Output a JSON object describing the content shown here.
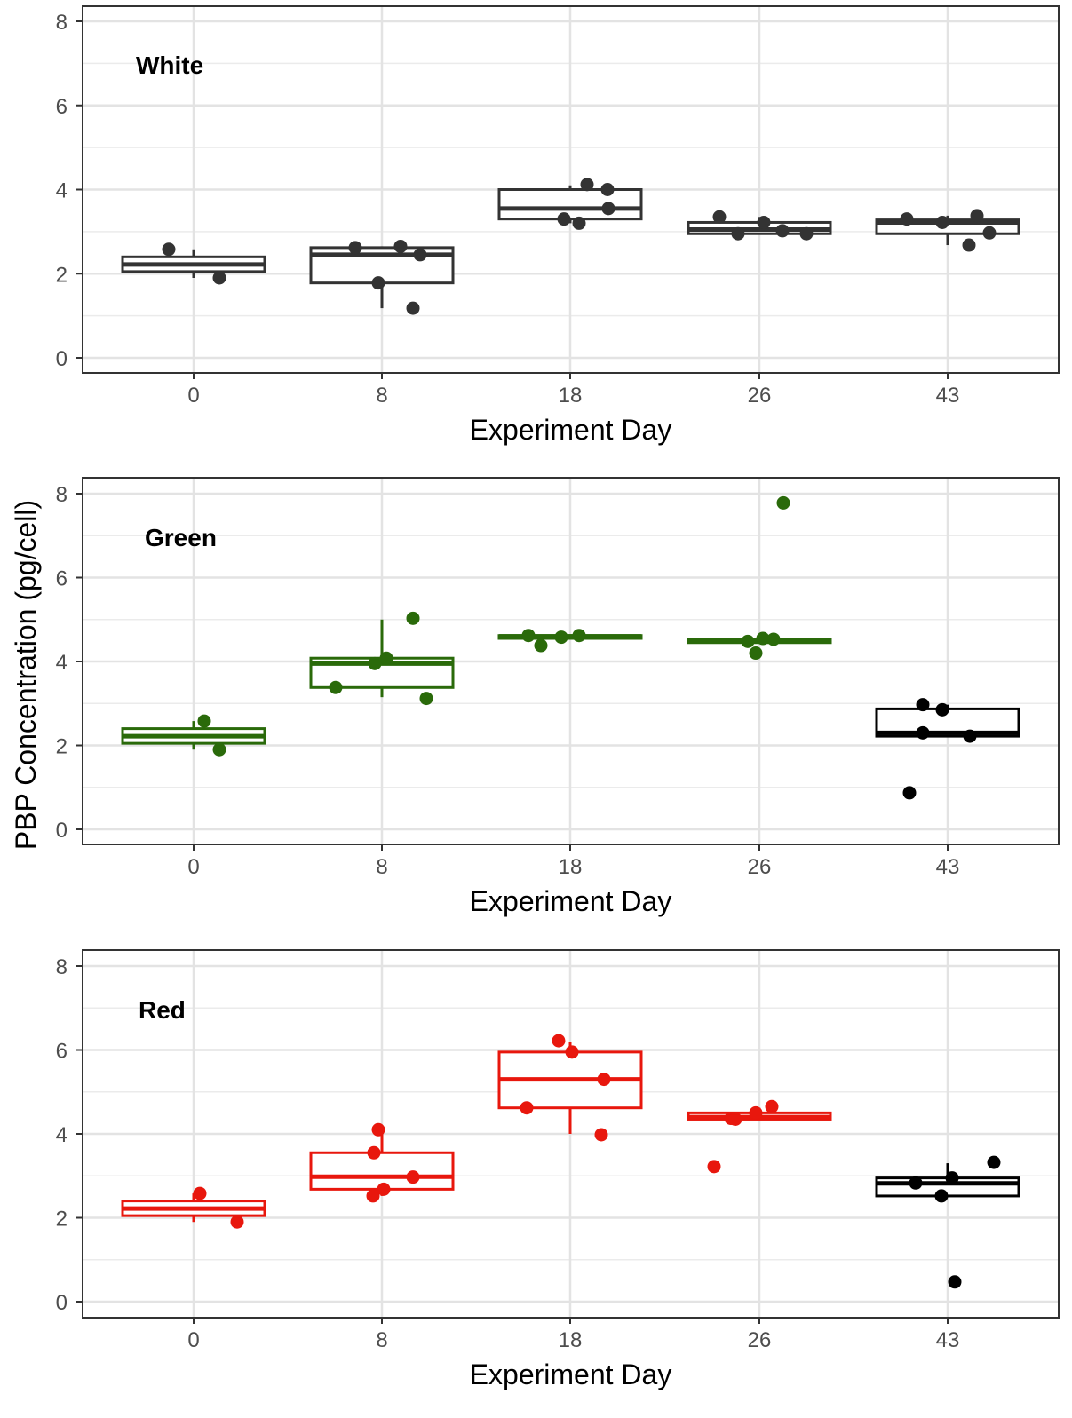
{
  "figure": {
    "ylabel": "PBP Concentration (pg/cell)"
  },
  "chart_data": [
    {
      "type": "box",
      "panel_label": "White",
      "xlabel": "Experiment Day",
      "categories": [
        "0",
        "8",
        "18",
        "26",
        "43"
      ],
      "ylim": [
        0,
        8
      ],
      "yticks": [
        0,
        2,
        4,
        6,
        8
      ],
      "grid": true,
      "color": "#333333",
      "boxes": [
        {
          "min": 1.9,
          "q1": 2.05,
          "median": 2.22,
          "q3": 2.4,
          "max": 2.58,
          "points": [
            2.58,
            1.9
          ],
          "color": "#333333"
        },
        {
          "min": 1.18,
          "q1": 1.78,
          "median": 2.45,
          "q3": 2.62,
          "max": 2.65,
          "points": [
            2.62,
            1.78,
            2.65,
            2.45,
            1.18
          ],
          "color": "#333333"
        },
        {
          "min": 3.2,
          "q1": 3.3,
          "median": 3.55,
          "q3": 4.0,
          "max": 4.1,
          "points": [
            3.3,
            3.2,
            4.12,
            3.55,
            4.0
          ],
          "color": "#333333"
        },
        {
          "min": 2.95,
          "q1": 2.95,
          "median": 3.05,
          "q3": 3.22,
          "max": 3.35,
          "points": [
            3.35,
            2.95,
            3.22,
            3.02,
            2.95
          ],
          "color": "#333333"
        },
        {
          "min": 2.68,
          "q1": 2.95,
          "median": 3.22,
          "q3": 3.28,
          "max": 3.38,
          "points": [
            3.3,
            3.22,
            2.68,
            3.38,
            2.97
          ],
          "color": "#333333"
        }
      ]
    },
    {
      "type": "box",
      "panel_label": "Green",
      "xlabel": "Experiment Day",
      "categories": [
        "0",
        "8",
        "18",
        "26",
        "43"
      ],
      "ylim": [
        0,
        8
      ],
      "yticks": [
        0,
        2,
        4,
        6,
        8
      ],
      "grid": true,
      "color": "#2a6a0a",
      "boxes": [
        {
          "min": 1.9,
          "q1": 2.05,
          "median": 2.22,
          "q3": 2.4,
          "max": 2.58,
          "points": [
            2.58,
            1.9
          ],
          "color": "#2a6a0a"
        },
        {
          "min": 3.15,
          "q1": 3.38,
          "median": 3.95,
          "q3": 4.08,
          "max": 5.0,
          "points": [
            3.38,
            3.95,
            4.08,
            5.03,
            3.12
          ],
          "color": "#2a6a0a"
        },
        {
          "min": 4.55,
          "q1": 4.55,
          "median": 4.6,
          "q3": 4.62,
          "max": 4.62,
          "points": [
            4.62,
            4.38,
            4.58,
            4.62
          ],
          "color": "#2a6a0a"
        },
        {
          "min": 4.45,
          "q1": 4.45,
          "median": 4.5,
          "q3": 4.53,
          "max": 4.55,
          "points": [
            4.48,
            4.2,
            4.55,
            4.53,
            7.78
          ],
          "color": "#2a6a0a"
        },
        {
          "min": 2.22,
          "q1": 2.22,
          "median": 2.3,
          "q3": 2.87,
          "max": 2.97,
          "points": [
            0.87,
            2.97,
            2.3,
            2.85,
            2.22
          ],
          "color": "#000000"
        }
      ]
    },
    {
      "type": "box",
      "panel_label": "Red",
      "xlabel": "Experiment Day",
      "categories": [
        "0",
        "8",
        "18",
        "26",
        "43"
      ],
      "ylim": [
        0,
        8
      ],
      "yticks": [
        0,
        2,
        4,
        6,
        8
      ],
      "grid": true,
      "color": "#e8170d",
      "boxes": [
        {
          "min": 1.9,
          "q1": 2.05,
          "median": 2.22,
          "q3": 2.4,
          "max": 2.58,
          "points": [
            2.58,
            1.9
          ],
          "color": "#e8170d"
        },
        {
          "min": 2.52,
          "q1": 2.68,
          "median": 2.98,
          "q3": 3.55,
          "max": 4.1,
          "points": [
            2.52,
            3.55,
            4.1,
            2.68,
            2.97
          ],
          "color": "#e8170d"
        },
        {
          "min": 4.0,
          "q1": 4.62,
          "median": 5.3,
          "q3": 5.95,
          "max": 6.2,
          "points": [
            4.62,
            6.22,
            5.95,
            3.98,
            5.3
          ],
          "color": "#e8170d"
        },
        {
          "min": 4.35,
          "q1": 4.35,
          "median": 4.4,
          "q3": 4.5,
          "max": 4.62,
          "points": [
            3.22,
            4.37,
            4.35,
            4.5,
            4.65
          ],
          "color": "#e8170d"
        },
        {
          "min": 2.52,
          "q1": 2.52,
          "median": 2.82,
          "q3": 2.95,
          "max": 3.3,
          "points": [
            2.83,
            2.52,
            2.95,
            0.47,
            3.32
          ],
          "color": "#000000"
        }
      ]
    }
  ]
}
